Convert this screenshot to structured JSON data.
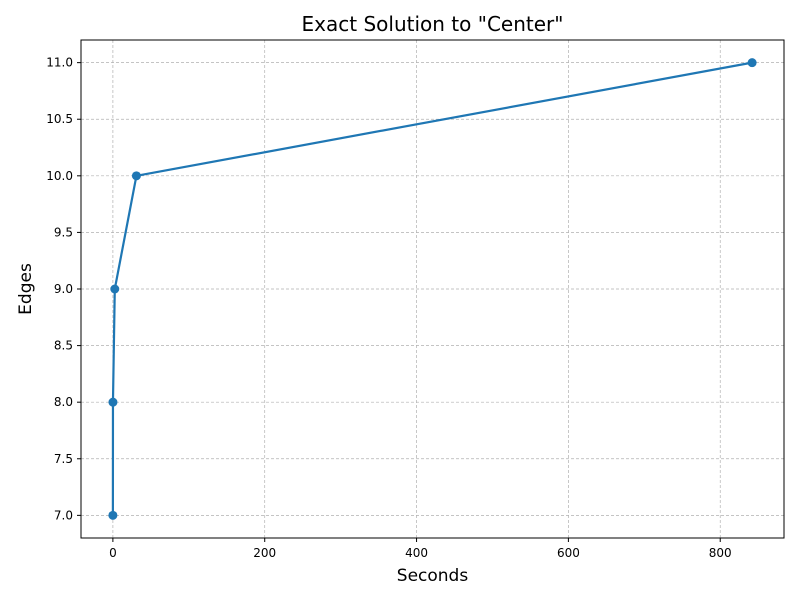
{
  "chart_data": {
    "type": "line",
    "title": "Exact Solution to \"Center\"",
    "xlabel": "Seconds",
    "ylabel": "Edges",
    "xlim": [
      -42,
      884
    ],
    "ylim": [
      6.8,
      11.2
    ],
    "x_ticks": [
      0,
      200,
      400,
      600,
      800
    ],
    "x_tick_labels": [
      "0",
      "200",
      "400",
      "600",
      "800"
    ],
    "y_ticks": [
      7.0,
      7.5,
      8.0,
      8.5,
      9.0,
      9.5,
      10.0,
      10.5,
      11.0
    ],
    "y_tick_labels": [
      "7.0",
      "7.5",
      "8.0",
      "8.5",
      "9.0",
      "9.5",
      "10.0",
      "10.5",
      "11.0"
    ],
    "grid": true,
    "legend": false,
    "series": [
      {
        "color": "#1f77b4",
        "marker": "circle",
        "x": [
          0.0,
          0.1,
          2.5,
          31.0,
          842.0
        ],
        "y": [
          7,
          8,
          9,
          10,
          11
        ]
      }
    ]
  }
}
